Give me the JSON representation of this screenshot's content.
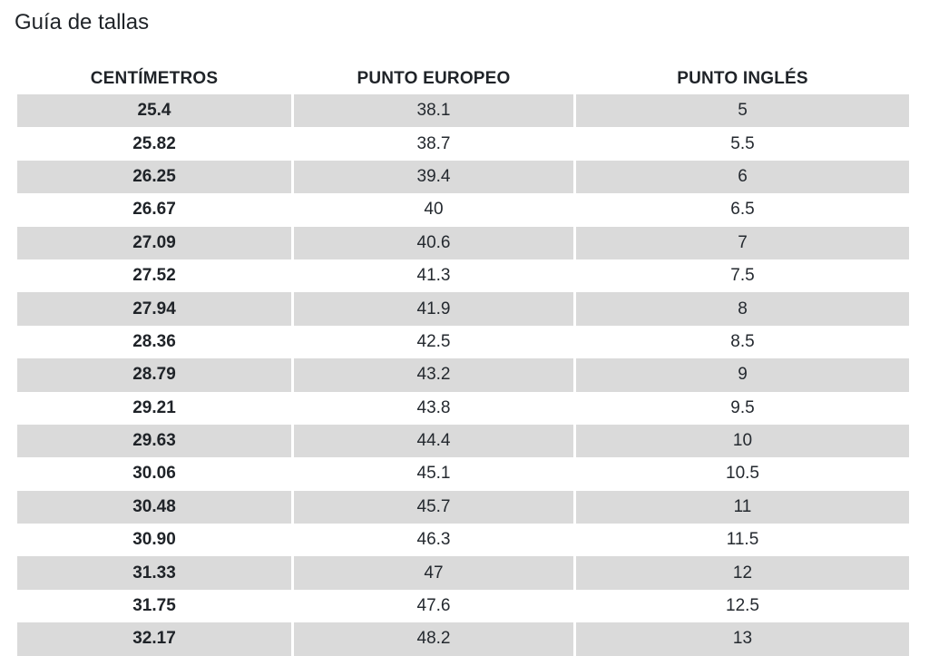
{
  "title": "Guía de tallas",
  "table": {
    "headers": [
      "CENTÍMETROS",
      "PUNTO EUROPEO",
      "PUNTO INGLÉS"
    ],
    "rows": [
      [
        "25.4",
        "38.1",
        "5"
      ],
      [
        "25.82",
        "38.7",
        "5.5"
      ],
      [
        "26.25",
        "39.4",
        "6"
      ],
      [
        "26.67",
        "40",
        "6.5"
      ],
      [
        "27.09",
        "40.6",
        "7"
      ],
      [
        "27.52",
        "41.3",
        "7.5"
      ],
      [
        "27.94",
        "41.9",
        "8"
      ],
      [
        "28.36",
        "42.5",
        "8.5"
      ],
      [
        "28.79",
        "43.2",
        "9"
      ],
      [
        "29.21",
        "43.8",
        "9.5"
      ],
      [
        "29.63",
        "44.4",
        "10"
      ],
      [
        "30.06",
        "45.1",
        "10.5"
      ],
      [
        "30.48",
        "45.7",
        "11"
      ],
      [
        "30.90",
        "46.3",
        "11.5"
      ],
      [
        "31.33",
        "47",
        "12"
      ],
      [
        "31.75",
        "47.6",
        "12.5"
      ],
      [
        "32.17",
        "48.2",
        "13"
      ]
    ]
  },
  "colors": {
    "stripe": "#dadada",
    "text": "#1f2328"
  }
}
